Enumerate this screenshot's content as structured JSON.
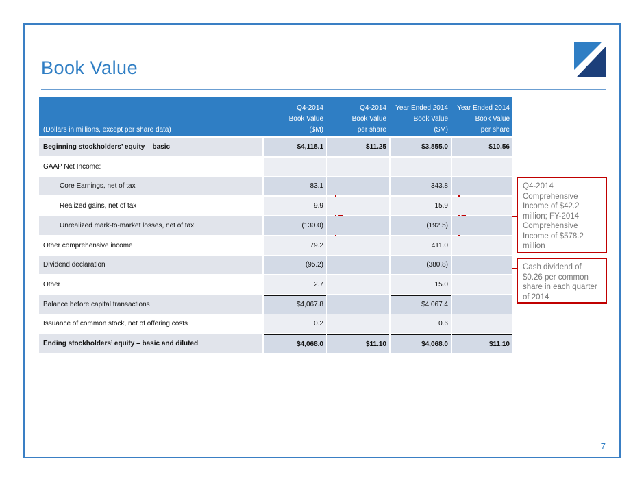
{
  "header": {
    "title": "Book Value"
  },
  "table": {
    "caption": "(Dollars in millions, except per share data)",
    "columns": [
      [
        "Q4-2014",
        "Book Value",
        "($M)"
      ],
      [
        "Q4-2014",
        "Book Value",
        "per share"
      ],
      [
        "Year Ended 2014",
        "Book Value",
        "($M)"
      ],
      [
        "Year  Ended 2014",
        "Book Value",
        "per share"
      ]
    ],
    "rows": [
      {
        "label": "Beginning stockholders’ equity – basic",
        "values": [
          "$4,118.1",
          "$11.25",
          "$3,855.0",
          "$10.56"
        ],
        "bold": true
      },
      {
        "label": "GAAP Net Income:",
        "values": [
          null,
          null,
          null,
          null
        ]
      },
      {
        "label": "Core Earnings, net of tax",
        "values": [
          "83.1",
          null,
          "343.8",
          null
        ],
        "indent": true
      },
      {
        "label": "Realized gains, net of tax",
        "values": [
          "9.9",
          null,
          "15.9",
          null
        ],
        "indent": true
      },
      {
        "label": "Unrealized mark-to-market losses, net of tax",
        "values": [
          "(130.0)",
          null,
          "(192.5)",
          null
        ],
        "indent": true
      },
      {
        "label": "Other comprehensive income",
        "values": [
          "79.2",
          null,
          "411.0",
          null
        ]
      },
      {
        "label": "Dividend declaration",
        "values": [
          "(95.2)",
          null,
          "(380.8)",
          null
        ]
      },
      {
        "label": "Other",
        "values": [
          "2.7",
          null,
          "15.0",
          null
        ]
      },
      {
        "label": "Balance before capital transactions",
        "values": [
          "$4,067.8",
          null,
          "$4,067.4",
          null
        ],
        "rule_above": [
          0,
          2
        ]
      },
      {
        "label": "Issuance of common stock, net of offering costs",
        "values": [
          "0.2",
          null,
          "0.6",
          null
        ]
      },
      {
        "label": "Ending stockholders’ equity – basic and diluted",
        "values": [
          "$4,068.0",
          "$11.10",
          "$4,068.0",
          "$11.10"
        ],
        "bold": true,
        "rule_above": [
          0,
          1,
          2,
          3
        ]
      }
    ]
  },
  "annotations": [
    "Q4-2014 Comprehensive Income of $42.2 million; FY-2014 Comprehensive Income of $578.2 million",
    "Cash dividend of $0.26 per common share in each quarter of 2014"
  ],
  "page_number": "7"
}
